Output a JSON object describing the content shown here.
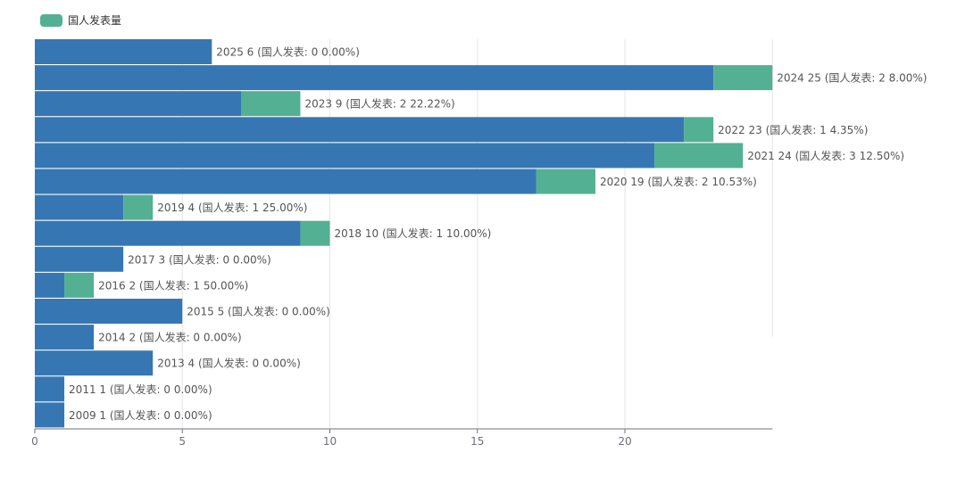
{
  "chart_data": {
    "type": "bar",
    "orientation": "horizontal",
    "stacked": true,
    "legend": {
      "position": "top-left",
      "entries": [
        "国人发表量"
      ]
    },
    "x_ticks": [
      "0",
      "5",
      "10",
      "15",
      "20"
    ],
    "xlim": [
      0,
      25
    ],
    "grid": true,
    "colors": {
      "total_series": "#3677b3",
      "domestic_series": "#53b093",
      "label_text": "#555555",
      "axis_text": "#6e7079",
      "grid": "#e6e6e6",
      "axis_line": "#6e7079"
    },
    "rows": [
      {
        "year": "2025",
        "total": 6,
        "domestic": 0,
        "label": "2025 6 (国人发表: 0 0.00%)"
      },
      {
        "year": "2024",
        "total": 25,
        "domestic": 2,
        "label": "2024 25 (国人发表: 2 8.00%)"
      },
      {
        "year": "2023",
        "total": 9,
        "domestic": 2,
        "label": "2023 9 (国人发表: 2 22.22%)"
      },
      {
        "year": "2022",
        "total": 23,
        "domestic": 1,
        "label": "2022 23 (国人发表: 1 4.35%)"
      },
      {
        "year": "2021",
        "total": 24,
        "domestic": 3,
        "label": "2021 24 (国人发表: 3 12.50%)"
      },
      {
        "year": "2020",
        "total": 19,
        "domestic": 2,
        "label": "2020 19 (国人发表: 2 10.53%)"
      },
      {
        "year": "2019",
        "total": 4,
        "domestic": 1,
        "label": "2019 4 (国人发表: 1 25.00%)"
      },
      {
        "year": "2018",
        "total": 10,
        "domestic": 1,
        "label": "2018 10 (国人发表: 1 10.00%)"
      },
      {
        "year": "2017",
        "total": 3,
        "domestic": 0,
        "label": "2017 3 (国人发表: 0 0.00%)"
      },
      {
        "year": "2016",
        "total": 2,
        "domestic": 1,
        "label": "2016 2 (国人发表: 1 50.00%)"
      },
      {
        "year": "2015",
        "total": 5,
        "domestic": 0,
        "label": "2015 5 (国人发表: 0 0.00%)"
      },
      {
        "year": "2014",
        "total": 2,
        "domestic": 0,
        "label": "2014 2 (国人发表: 0 0.00%)"
      },
      {
        "year": "2013",
        "total": 4,
        "domestic": 0,
        "label": "2013 4 (国人发表: 0 0.00%)"
      },
      {
        "year": "2011",
        "total": 1,
        "domestic": 0,
        "label": "2011 1 (国人发表: 0 0.00%)"
      },
      {
        "year": "2009",
        "total": 1,
        "domestic": 0,
        "label": "2009 1 (国人发表: 0 0.00%)"
      }
    ]
  }
}
